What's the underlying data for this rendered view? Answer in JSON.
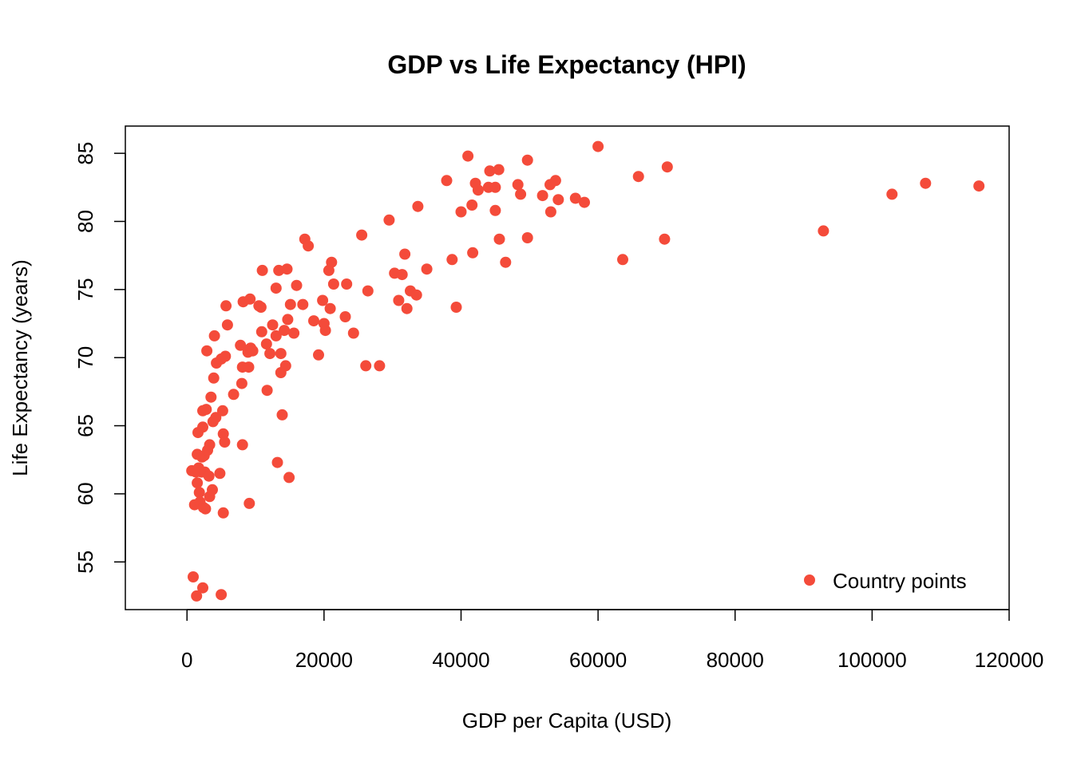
{
  "chart_data": {
    "type": "scatter",
    "title": "GDP vs Life Expectancy (HPI)",
    "xlabel": "GDP per Capita (USD)",
    "ylabel": "Life Expectancy (years)",
    "xlim": [
      -9000,
      120000
    ],
    "ylim": [
      51.5,
      87
    ],
    "xticks": [
      0,
      20000,
      40000,
      60000,
      80000,
      100000,
      120000
    ],
    "yticks": [
      55,
      60,
      65,
      70,
      75,
      80,
      85
    ],
    "grid": false,
    "legend": {
      "position": "bottom-right",
      "entries": [
        "Country points"
      ]
    },
    "point_color": "#F44B3A",
    "series": [
      {
        "name": "Country points",
        "points": [
          [
            700,
            61.7
          ],
          [
            900,
            53.9
          ],
          [
            1100,
            59.2
          ],
          [
            1300,
            61.6
          ],
          [
            1400,
            52.5
          ],
          [
            1500,
            60.8
          ],
          [
            1500,
            62.9
          ],
          [
            1600,
            64.5
          ],
          [
            1700,
            61.9
          ],
          [
            1800,
            60.1
          ],
          [
            1900,
            59.4
          ],
          [
            2100,
            61.6
          ],
          [
            2200,
            62.7
          ],
          [
            2300,
            53.1
          ],
          [
            2300,
            64.9
          ],
          [
            2300,
            66.1
          ],
          [
            2400,
            59.0
          ],
          [
            2500,
            62.8
          ],
          [
            2600,
            61.6
          ],
          [
            2700,
            58.9
          ],
          [
            2800,
            66.2
          ],
          [
            2900,
            70.5
          ],
          [
            3000,
            63.2
          ],
          [
            3200,
            61.3
          ],
          [
            3300,
            59.8
          ],
          [
            3300,
            63.6
          ],
          [
            3500,
            67.1
          ],
          [
            3700,
            60.3
          ],
          [
            3800,
            65.3
          ],
          [
            3900,
            68.5
          ],
          [
            4000,
            71.6
          ],
          [
            4200,
            65.6
          ],
          [
            4300,
            69.6
          ],
          [
            4800,
            61.5
          ],
          [
            5000,
            52.6
          ],
          [
            5000,
            69.9
          ],
          [
            5200,
            66.1
          ],
          [
            5300,
            64.4
          ],
          [
            5300,
            58.6
          ],
          [
            5500,
            63.8
          ],
          [
            5600,
            70.1
          ],
          [
            5700,
            73.8
          ],
          [
            5900,
            72.4
          ],
          [
            6800,
            67.3
          ],
          [
            7800,
            70.9
          ],
          [
            8000,
            68.1
          ],
          [
            8100,
            63.6
          ],
          [
            8100,
            69.3
          ],
          [
            8200,
            74.1
          ],
          [
            8900,
            70.4
          ],
          [
            9000,
            69.3
          ],
          [
            9100,
            59.3
          ],
          [
            9200,
            74.3
          ],
          [
            9300,
            70.7
          ],
          [
            9600,
            70.5
          ],
          [
            10500,
            73.8
          ],
          [
            10800,
            73.7
          ],
          [
            10900,
            71.9
          ],
          [
            11000,
            76.4
          ],
          [
            11600,
            71.0
          ],
          [
            11700,
            67.6
          ],
          [
            12100,
            70.3
          ],
          [
            12500,
            72.4
          ],
          [
            13000,
            71.6
          ],
          [
            13000,
            75.1
          ],
          [
            13200,
            62.3
          ],
          [
            13400,
            76.4
          ],
          [
            13700,
            70.3
          ],
          [
            13700,
            68.9
          ],
          [
            13900,
            65.8
          ],
          [
            14200,
            72.0
          ],
          [
            14400,
            69.4
          ],
          [
            14600,
            76.5
          ],
          [
            14700,
            72.8
          ],
          [
            14900,
            61.2
          ],
          [
            15100,
            73.9
          ],
          [
            15600,
            71.8
          ],
          [
            16000,
            75.3
          ],
          [
            16900,
            73.9
          ],
          [
            17200,
            78.7
          ],
          [
            17700,
            78.2
          ],
          [
            18500,
            72.7
          ],
          [
            19200,
            70.2
          ],
          [
            19800,
            74.2
          ],
          [
            20000,
            72.5
          ],
          [
            20200,
            72.0
          ],
          [
            20700,
            76.4
          ],
          [
            20900,
            73.6
          ],
          [
            21100,
            77.0
          ],
          [
            21400,
            75.4
          ],
          [
            23100,
            73.0
          ],
          [
            23300,
            75.4
          ],
          [
            24300,
            71.8
          ],
          [
            25500,
            79.0
          ],
          [
            26100,
            69.4
          ],
          [
            26400,
            74.9
          ],
          [
            28100,
            69.4
          ],
          [
            29500,
            80.1
          ],
          [
            30300,
            76.2
          ],
          [
            30900,
            74.2
          ],
          [
            31400,
            76.1
          ],
          [
            31800,
            77.6
          ],
          [
            32100,
            73.6
          ],
          [
            32600,
            74.9
          ],
          [
            33500,
            74.6
          ],
          [
            33700,
            81.1
          ],
          [
            35000,
            76.5
          ],
          [
            37900,
            83.0
          ],
          [
            38700,
            77.2
          ],
          [
            39300,
            73.7
          ],
          [
            40000,
            80.7
          ],
          [
            41000,
            84.8
          ],
          [
            41600,
            81.2
          ],
          [
            41700,
            77.7
          ],
          [
            42100,
            82.8
          ],
          [
            42500,
            82.3
          ],
          [
            44000,
            82.5
          ],
          [
            44200,
            83.7
          ],
          [
            45000,
            80.8
          ],
          [
            45000,
            82.5
          ],
          [
            45500,
            83.8
          ],
          [
            45600,
            78.7
          ],
          [
            46500,
            77.0
          ],
          [
            48300,
            82.7
          ],
          [
            48700,
            82.0
          ],
          [
            49700,
            84.5
          ],
          [
            49700,
            78.8
          ],
          [
            51900,
            81.9
          ],
          [
            53000,
            82.7
          ],
          [
            53100,
            80.7
          ],
          [
            53800,
            83.0
          ],
          [
            54200,
            81.6
          ],
          [
            56700,
            81.7
          ],
          [
            58000,
            81.4
          ],
          [
            60000,
            85.5
          ],
          [
            63600,
            77.2
          ],
          [
            65900,
            83.3
          ],
          [
            69700,
            78.7
          ],
          [
            70100,
            84.0
          ],
          [
            92900,
            79.3
          ],
          [
            102900,
            82.0
          ],
          [
            107800,
            82.8
          ],
          [
            115600,
            82.6
          ]
        ]
      }
    ]
  }
}
